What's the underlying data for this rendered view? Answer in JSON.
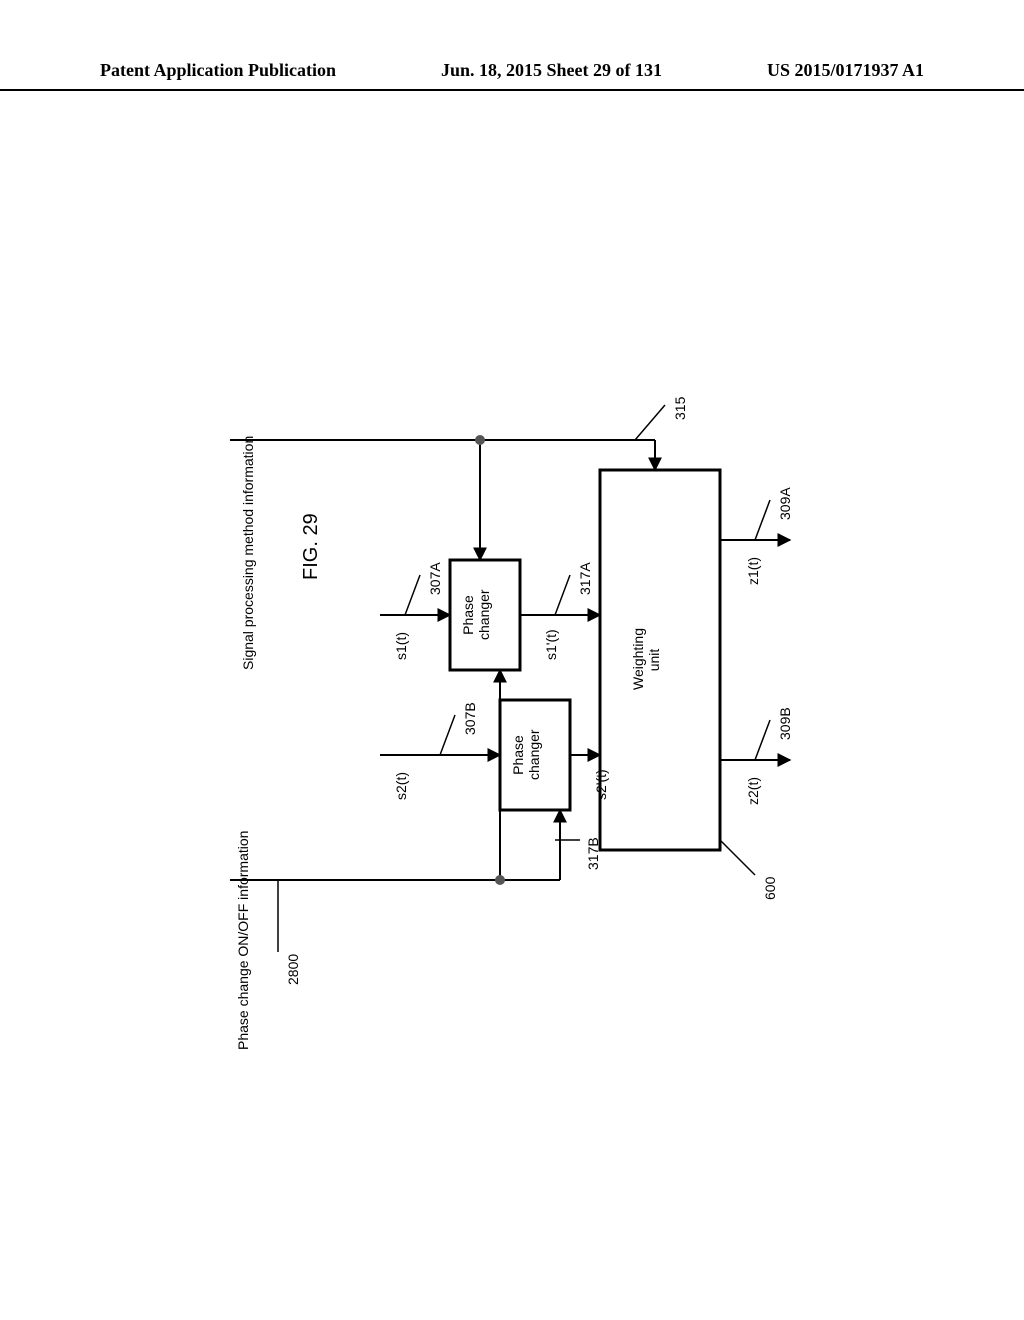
{
  "header": {
    "left": "Patent Application Publication",
    "center": "Jun. 18, 2015  Sheet 29 of 131",
    "right": "US 2015/0171937 A1"
  },
  "figure": {
    "title": "FIG. 29",
    "info_top": "Signal processing method information",
    "info_bottom": "Phase change ON/OFF information",
    "blocks": {
      "phase_changer_a": "Phase\nchanger",
      "phase_changer_b": "Phase\nchanger",
      "weighting_unit": "Weighting\nunit"
    },
    "signals": {
      "s1": "s1(t)",
      "s2": "s2(t)",
      "s1p": "s1'(t)",
      "s2p": "s2'(t)",
      "z1": "z1(t)",
      "z2": "z2(t)"
    },
    "refs": {
      "r307a": "307A",
      "r307b": "307B",
      "r317a": "317A",
      "r317b": "317B",
      "r309a": "309A",
      "r309b": "309B",
      "r315": "315",
      "r600": "600",
      "r2800": "2800"
    },
    "colors": {
      "line": "#000000",
      "fill": "#ffffff",
      "node": "#555555"
    }
  }
}
